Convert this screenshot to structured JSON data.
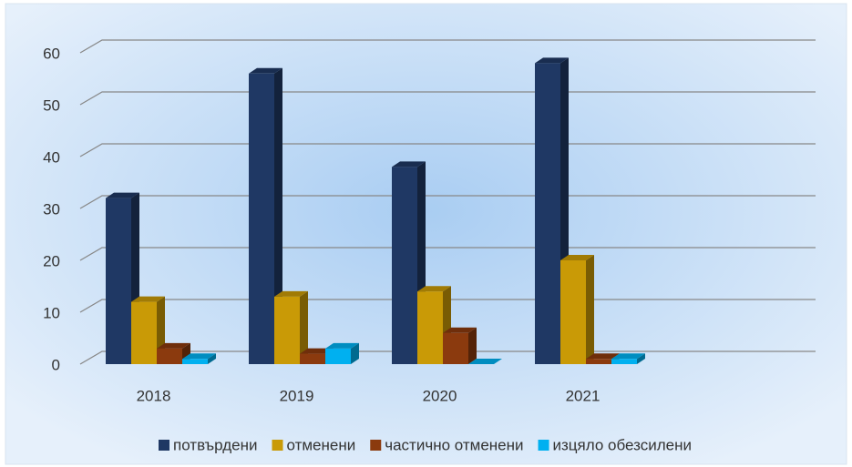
{
  "chart_data": {
    "type": "bar3d",
    "categories": [
      "2018",
      "2019",
      "2020",
      "2021"
    ],
    "series": [
      {
        "name": "потвърдени",
        "color": "#1f3864",
        "values": [
          32,
          56,
          38,
          58
        ]
      },
      {
        "name": "отменени",
        "color": "#c99a06",
        "values": [
          12,
          13,
          14,
          20
        ]
      },
      {
        "name": "частично отменени",
        "color": "#8b3a0e",
        "values": [
          3,
          2,
          6,
          1
        ]
      },
      {
        "name": "изцяло обезсилени",
        "color": "#00b0f0",
        "values": [
          1,
          3,
          0,
          1
        ]
      }
    ],
    "ylim": [
      0,
      60
    ],
    "yticks": [
      0,
      10,
      20,
      30,
      40,
      50,
      60
    ],
    "grid": true,
    "legend": "bottom"
  }
}
